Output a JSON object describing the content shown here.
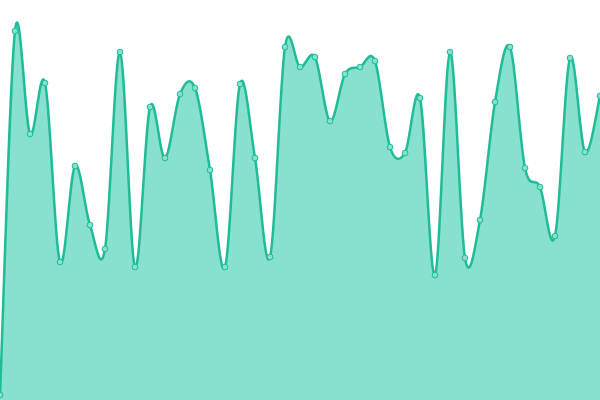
{
  "chart_data": {
    "type": "area",
    "smooth": true,
    "color": "#1fbc96",
    "fill": "#88e0cf",
    "values": [
      5,
      369,
      266,
      317,
      138,
      234,
      175,
      151,
      348,
      133,
      293,
      242,
      306,
      312,
      230,
      133,
      316,
      242,
      143,
      353,
      333,
      343,
      279,
      326,
      333,
      339,
      253,
      247,
      302,
      125,
      348,
      142,
      180,
      298,
      353,
      232,
      213,
      164,
      342,
      248,
      304
    ],
    "ylim": [
      0,
      400
    ]
  }
}
